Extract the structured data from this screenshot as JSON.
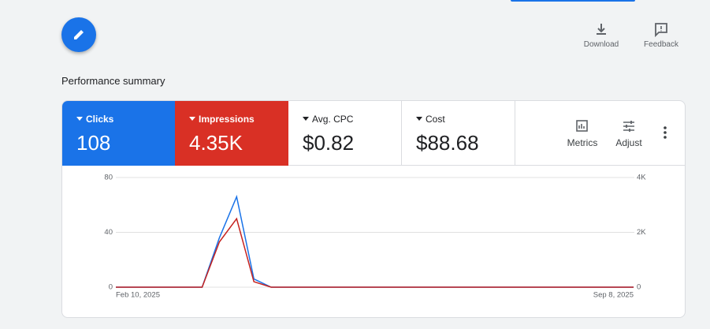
{
  "header": {
    "download": "Download",
    "feedback": "Feedback",
    "section_title": "Performance summary"
  },
  "metrics": [
    {
      "label": "Clicks",
      "value": "108",
      "color": "#1a73e8"
    },
    {
      "label": "Impressions",
      "value": "4.35K",
      "color": "#d93025"
    },
    {
      "label": "Avg. CPC",
      "value": "$0.82"
    },
    {
      "label": "Cost",
      "value": "$88.68"
    }
  ],
  "toolbar": {
    "metrics": "Metrics",
    "adjust": "Adjust"
  },
  "chart_data": {
    "type": "line",
    "categories": [
      "Feb 10, 2025",
      null,
      null,
      null,
      null,
      null,
      null,
      null,
      null,
      null,
      null,
      null,
      null,
      null,
      null,
      null,
      null,
      null,
      null,
      null,
      null,
      null,
      null,
      null,
      null,
      null,
      null,
      null,
      null,
      null,
      "Sep 8, 2025"
    ],
    "series": [
      {
        "name": "Clicks",
        "color": "#1a73e8",
        "values": [
          0,
          0,
          0,
          0,
          0,
          0,
          36,
          66,
          6,
          0,
          0,
          0,
          0,
          0,
          0,
          0,
          0,
          0,
          0,
          0,
          0,
          0,
          0,
          0,
          0,
          0,
          0,
          0,
          0,
          0,
          0
        ]
      },
      {
        "name": "Impressions",
        "color": "#c5221f",
        "axis": "y2",
        "values": [
          0,
          0,
          0,
          0,
          0,
          0,
          1650,
          2500,
          200,
          0,
          0,
          0,
          0,
          0,
          0,
          0,
          0,
          0,
          0,
          0,
          0,
          0,
          0,
          0,
          0,
          0,
          0,
          0,
          0,
          0,
          0
        ]
      }
    ],
    "ylim": [
      0,
      80
    ],
    "yticks": [
      0,
      40,
      80
    ],
    "y2lim": [
      0,
      4000
    ],
    "y2ticks": [
      0,
      {
        "value": 2000,
        "label": "2K"
      },
      {
        "value": 4000,
        "label": "4K"
      }
    ],
    "grid": true
  }
}
